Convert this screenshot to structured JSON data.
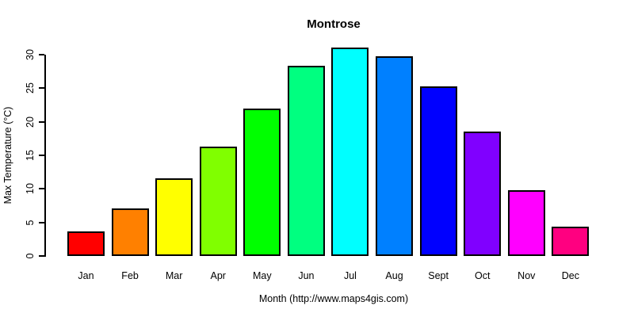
{
  "chart_data": {
    "type": "bar",
    "title": "Montrose",
    "xlabel": "Month (http://www.maps4gis.com)",
    "ylabel": "Max Temperature (°C)",
    "categories": [
      "Jan",
      "Feb",
      "Mar",
      "Apr",
      "May",
      "Jun",
      "Jul",
      "Aug",
      "Sept",
      "Oct",
      "Nov",
      "Dec"
    ],
    "values": [
      3.7,
      7.1,
      11.6,
      16.3,
      22.0,
      28.3,
      31.1,
      29.8,
      25.3,
      18.5,
      9.8,
      4.4
    ],
    "bar_colors": [
      "#FF0000",
      "#FF8000",
      "#FFFF00",
      "#80FF00",
      "#00FF00",
      "#00FF80",
      "#00FFFF",
      "#0080FF",
      "#0000FF",
      "#8000FF",
      "#FF00FF",
      "#FF0080"
    ],
    "bar_border_color": "#000000",
    "yticks": [
      0,
      5,
      10,
      15,
      20,
      25,
      30
    ],
    "ylim": [
      0,
      30
    ],
    "grid": false,
    "legend": "none",
    "background": "#FFFFFF",
    "axis_color": "#000000"
  }
}
